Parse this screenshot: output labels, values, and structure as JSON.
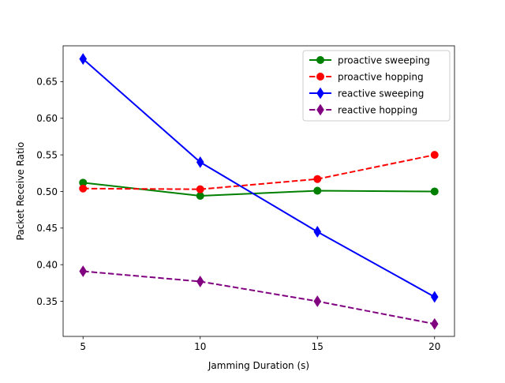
{
  "chart_data": {
    "type": "line",
    "title": "",
    "xlabel": "Jamming Duration (s)",
    "ylabel": "Packet Receive Ratio",
    "x": [
      5,
      10,
      15,
      20
    ],
    "xlim": [
      4.15,
      20.85
    ],
    "ylim": [
      0.302,
      0.699
    ],
    "xticks": [
      5,
      10,
      15,
      20
    ],
    "yticks": [
      0.35,
      0.4,
      0.45,
      0.5,
      0.55,
      0.6,
      0.65
    ],
    "ytick_labels": [
      "0.35",
      "0.40",
      "0.45",
      "0.50",
      "0.55",
      "0.60",
      "0.65"
    ],
    "grid": false,
    "legend_position": "top-right",
    "series": [
      {
        "name": "proactive sweeping",
        "values": [
          0.512,
          0.494,
          0.501,
          0.5
        ],
        "color": "#008000",
        "dash": "solid",
        "marker": "circle"
      },
      {
        "name": "proactive hopping",
        "values": [
          0.504,
          0.503,
          0.517,
          0.55
        ],
        "color": "#ff0000",
        "dash": "dashed",
        "marker": "circle"
      },
      {
        "name": "reactive sweeping",
        "values": [
          0.681,
          0.54,
          0.445,
          0.356
        ],
        "color": "#0000ff",
        "dash": "solid",
        "marker": "diamond"
      },
      {
        "name": "reactive hopping",
        "values": [
          0.391,
          0.377,
          0.35,
          0.319
        ],
        "color": "#800080",
        "dash": "dashed",
        "marker": "diamond"
      }
    ]
  }
}
